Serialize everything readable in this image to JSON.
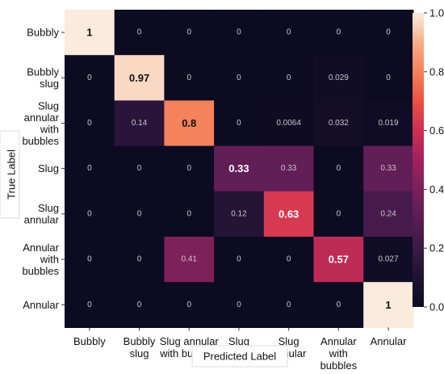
{
  "chart_data": {
    "type": "heatmap",
    "title": "",
    "xlabel": "Predicted Label",
    "ylabel": "True Label",
    "x_categories": [
      [
        "Bubbly"
      ],
      [
        "Bubbly",
        "slug"
      ],
      [
        "Slug annular",
        "with bubbles"
      ],
      [
        "Slug"
      ],
      [
        "Slug",
        "annular"
      ],
      [
        "Annular",
        "with",
        "bubbles"
      ],
      [
        "Annular"
      ]
    ],
    "y_categories": [
      [
        "Bubbly"
      ],
      [
        "Bubbly",
        "slug"
      ],
      [
        "Slug",
        "annular",
        "with",
        "bubbles"
      ],
      [
        "Slug"
      ],
      [
        "Slug",
        "annular"
      ],
      [
        "Annular",
        "with",
        "bubbles"
      ],
      [
        "Annular"
      ]
    ],
    "values": [
      [
        1,
        0,
        0,
        0,
        0,
        0,
        0
      ],
      [
        0,
        0.97,
        0,
        0,
        0,
        0.029,
        0
      ],
      [
        0,
        0.14,
        0.8,
        0,
        0.0064,
        0.032,
        0.019
      ],
      [
        0,
        0,
        0,
        0.33,
        0.33,
        0,
        0.33
      ],
      [
        0,
        0,
        0,
        0.12,
        0.63,
        0,
        0.24
      ],
      [
        0,
        0,
        0.41,
        0,
        0,
        0.57,
        0.027
      ],
      [
        0,
        0,
        0,
        0,
        0,
        0,
        1
      ]
    ],
    "labels": [
      [
        "1",
        "0",
        "0",
        "0",
        "0",
        "0",
        "0"
      ],
      [
        "0",
        "0.97",
        "0",
        "0",
        "0",
        "0.029",
        "0"
      ],
      [
        "0",
        "0.14",
        "0.8",
        "0",
        "0.0064",
        "0.032",
        "0.019"
      ],
      [
        "0",
        "0",
        "0",
        "0.33",
        "0.33",
        "0",
        "0.33"
      ],
      [
        "0",
        "0",
        "0",
        "0.12",
        "0.63",
        "0",
        "0.24"
      ],
      [
        "0",
        "0",
        "0.41",
        "0",
        "0",
        "0.57",
        "0.027"
      ],
      [
        "0",
        "0",
        "0",
        "0",
        "0",
        "0",
        "1"
      ]
    ],
    "emphasized_labels": [
      [
        true,
        false,
        false,
        false,
        false,
        false,
        false
      ],
      [
        false,
        true,
        false,
        false,
        false,
        false,
        false
      ],
      [
        false,
        false,
        true,
        false,
        false,
        false,
        false
      ],
      [
        false,
        false,
        false,
        true,
        false,
        false,
        false
      ],
      [
        false,
        false,
        false,
        false,
        true,
        false,
        false
      ],
      [
        false,
        false,
        false,
        false,
        false,
        true,
        false
      ],
      [
        false,
        false,
        false,
        false,
        false,
        false,
        true
      ]
    ],
    "colorbar": {
      "range": [
        0.0,
        1.0
      ],
      "ticks": [
        "0.0",
        "0.2",
        "0.4",
        "0.6",
        "0.8",
        "1.0"
      ],
      "colormap": "rocket",
      "placement": "right"
    },
    "colormap_stops": [
      [
        0.0,
        "#0d0b22"
      ],
      [
        0.1,
        "#1f1232"
      ],
      [
        0.2,
        "#3a1a45"
      ],
      [
        0.3,
        "#581d54"
      ],
      [
        0.4,
        "#7a205a"
      ],
      [
        0.5,
        "#a0225d"
      ],
      [
        0.6,
        "#cd2f55"
      ],
      [
        0.7,
        "#ec5044"
      ],
      [
        0.8,
        "#f4825b"
      ],
      [
        0.9,
        "#f6ae8a"
      ],
      [
        1.0,
        "#faebdd"
      ]
    ]
  }
}
